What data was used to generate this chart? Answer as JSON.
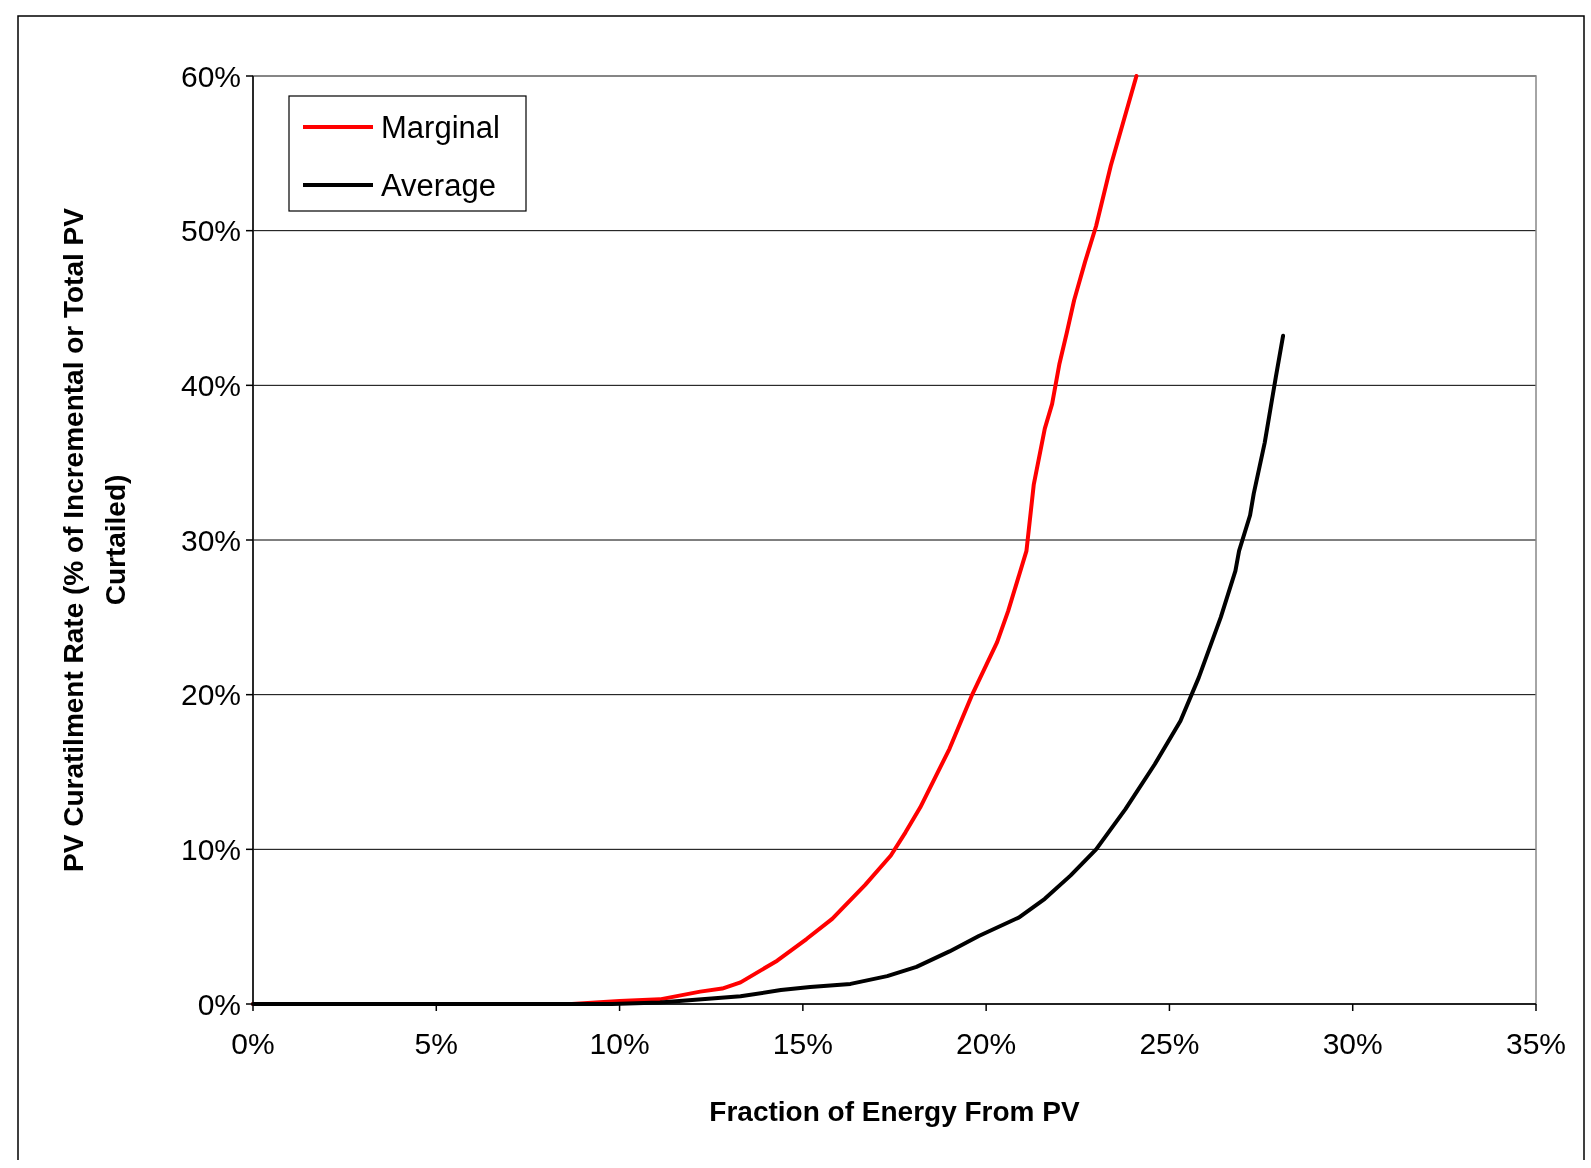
{
  "chart_data": {
    "type": "line",
    "xlabel": "Fraction of Energy From PV",
    "ylabel": "PV Curatilment Rate (% of Incremental or Total PV Curtailed)",
    "xlim": [
      0,
      35
    ],
    "ylim": [
      0,
      60
    ],
    "xticks": [
      {
        "value": 0,
        "label": "0%"
      },
      {
        "value": 5,
        "label": "5%"
      },
      {
        "value": 10,
        "label": "10%"
      },
      {
        "value": 15,
        "label": "15%"
      },
      {
        "value": 20,
        "label": "20%"
      },
      {
        "value": 25,
        "label": "25%"
      },
      {
        "value": 30,
        "label": "30%"
      },
      {
        "value": 35,
        "label": "35%"
      }
    ],
    "yticks": [
      {
        "value": 0,
        "label": "0%"
      },
      {
        "value": 10,
        "label": "10%"
      },
      {
        "value": 20,
        "label": "20%"
      },
      {
        "value": 30,
        "label": "30%"
      },
      {
        "value": 40,
        "label": "40%"
      },
      {
        "value": 50,
        "label": "50%"
      },
      {
        "value": 60,
        "label": "60%"
      }
    ],
    "grid": "y",
    "legend": "top left",
    "marker": "none",
    "line_style": "solid",
    "series": [
      {
        "name": "Marginal",
        "color": "#ff0000",
        "x": [
          0,
          8.7,
          10.0,
          11.1,
          12.2,
          12.8,
          13.3,
          14.3,
          15.1,
          15.8,
          16.7,
          17.4,
          17.8,
          18.2,
          19.0,
          19.6,
          20.3,
          20.6,
          21.1,
          21.3,
          21.6,
          21.8,
          22.0,
          22.2,
          22.4,
          22.7,
          23.0,
          23.4,
          24.1
        ],
        "values": [
          0,
          0,
          0.2,
          0.3,
          0.8,
          1.0,
          1.4,
          2.8,
          4.2,
          5.5,
          7.7,
          9.6,
          11.1,
          12.7,
          16.5,
          19.9,
          23.4,
          25.4,
          29.3,
          33.6,
          37.2,
          38.8,
          41.4,
          43.4,
          45.5,
          48.0,
          50.3,
          54.2,
          60
        ]
      },
      {
        "name": "Average",
        "color": "#000000",
        "x": [
          0,
          9.8,
          11.1,
          13.3,
          14.4,
          15.2,
          16.3,
          17.3,
          18.1,
          19.0,
          19.8,
          20.9,
          21.6,
          22.3,
          23.0,
          23.8,
          24.6,
          25.3,
          25.8,
          26.4,
          26.8,
          26.9,
          27.2,
          27.3,
          27.6,
          27.8,
          27.9,
          28.1
        ],
        "values": [
          0,
          0,
          0.1,
          0.5,
          0.9,
          1.1,
          1.3,
          1.8,
          2.4,
          3.4,
          4.4,
          5.6,
          6.8,
          8.3,
          10.0,
          12.6,
          15.5,
          18.3,
          21.1,
          25.0,
          28.0,
          29.3,
          31.6,
          33.0,
          36.3,
          39.1,
          40.5,
          43.2
        ]
      }
    ]
  }
}
